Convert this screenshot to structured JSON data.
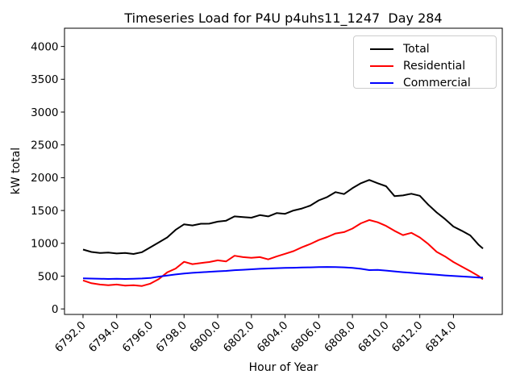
{
  "figure": {
    "background": "#ffffff",
    "accent_colors": {
      "total": "#000000",
      "residential": "#ff0000",
      "commercial": "#0000ff"
    }
  },
  "chart_data": {
    "type": "line",
    "title": "Timeseries Load for P4U p4uhs11_1247  Day 284",
    "xlabel": "Hour of Year",
    "ylabel": "kW total",
    "grid": false,
    "legend_position": "upper right",
    "xlim": [
      6790.9,
      6816.9
    ],
    "ylim": [
      -84,
      4278
    ],
    "xticks": [
      6792,
      6794,
      6796,
      6798,
      6800,
      6802,
      6804,
      6806,
      6808,
      6810,
      6812,
      6814
    ],
    "xtick_labels": [
      "6792.0",
      "6794.0",
      "6796.0",
      "6798.0",
      "6800.0",
      "6802.0",
      "6804.0",
      "6806.0",
      "6808.0",
      "6810.0",
      "6812.0",
      "6814.0"
    ],
    "yticks": [
      0,
      500,
      1000,
      1500,
      2000,
      2500,
      3000,
      3500,
      4000
    ],
    "ytick_labels": [
      "0",
      "500",
      "1000",
      "1500",
      "2000",
      "2500",
      "3000",
      "3500",
      "4000"
    ],
    "x": [
      6792.0,
      6792.5,
      6793.0,
      6793.5,
      6794.0,
      6794.5,
      6795.0,
      6795.5,
      6796.0,
      6796.5,
      6797.0,
      6797.5,
      6798.0,
      6798.5,
      6799.0,
      6799.5,
      6800.0,
      6800.5,
      6801.0,
      6801.5,
      6802.0,
      6802.5,
      6803.0,
      6803.5,
      6804.0,
      6804.5,
      6805.0,
      6805.5,
      6806.0,
      6806.5,
      6807.0,
      6807.5,
      6808.0,
      6808.5,
      6809.0,
      6809.5,
      6810.0,
      6810.5,
      6811.0,
      6811.5,
      6812.0,
      6812.5,
      6813.0,
      6813.5,
      6814.0,
      6814.5,
      6815.0,
      6815.5,
      6815.75
    ],
    "series": [
      {
        "name": "Total",
        "color": "#000000",
        "values": [
          905,
          868,
          852,
          858,
          845,
          852,
          838,
          865,
          940,
          1015,
          1090,
          1205,
          1290,
          1272,
          1298,
          1300,
          1330,
          1345,
          1410,
          1400,
          1390,
          1430,
          1410,
          1460,
          1450,
          1500,
          1530,
          1575,
          1655,
          1705,
          1780,
          1750,
          1840,
          1915,
          1965,
          1915,
          1870,
          1720,
          1730,
          1755,
          1725,
          1590,
          1470,
          1370,
          1255,
          1190,
          1120,
          975,
          920
        ]
      },
      {
        "name": "Residential",
        "color": "#ff0000",
        "values": [
          435,
          392,
          372,
          362,
          372,
          355,
          362,
          350,
          385,
          455,
          558,
          615,
          718,
          683,
          700,
          715,
          740,
          725,
          810,
          790,
          780,
          790,
          755,
          800,
          840,
          880,
          940,
          990,
          1050,
          1095,
          1150,
          1170,
          1225,
          1305,
          1355,
          1320,
          1265,
          1190,
          1125,
          1160,
          1090,
          990,
          870,
          800,
          715,
          645,
          575,
          500,
          452
        ]
      },
      {
        "name": "Commercial",
        "color": "#0000ff",
        "values": [
          465,
          463,
          460,
          457,
          459,
          457,
          460,
          464,
          472,
          492,
          508,
          525,
          540,
          550,
          558,
          566,
          573,
          580,
          590,
          597,
          604,
          611,
          616,
          621,
          625,
          628,
          631,
          634,
          637,
          640,
          638,
          633,
          626,
          612,
          592,
          596,
          585,
          572,
          560,
          550,
          540,
          530,
          520,
          511,
          502,
          495,
          487,
          479,
          478
        ]
      }
    ]
  }
}
